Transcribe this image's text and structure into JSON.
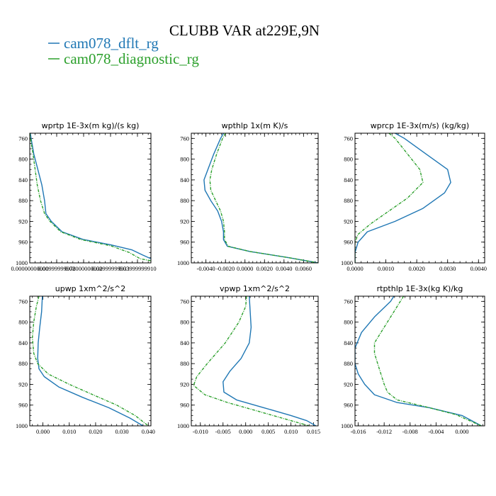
{
  "figure": {
    "title": "CLUBB VAR at229E,9N",
    "legend": [
      {
        "label": "cam078_dflt_rg",
        "color": "#1f77b4"
      },
      {
        "label": "cam078_diagnostic_rg",
        "color": "#2ca02c"
      }
    ]
  },
  "chart_data": [
    {
      "type": "line",
      "title": "wprtp  1E-3x(m kg)/(s kg)",
      "ylim": [
        1000,
        750
      ],
      "yticks": [
        760,
        800,
        840,
        880,
        920,
        960,
        1000
      ],
      "xlim": [
        0.0,
        0.045
      ],
      "xticks": [
        0.0,
        0.01,
        0.02,
        0.03,
        0.04
      ],
      "xtick_labels": [
        "0.00000000000",
        "0.00999999978",
        "0.02000000030",
        "0.02999999933",
        "0.03999999910"
      ],
      "series": [
        {
          "name": "cam078_dflt_rg",
          "color": "#1f77b4",
          "style": "solid",
          "points": [
            [
              0.0002,
              750
            ],
            [
              0.0005,
              760
            ],
            [
              0.0015,
              790
            ],
            [
              0.003,
              820
            ],
            [
              0.0045,
              850
            ],
            [
              0.0055,
              880
            ],
            [
              0.006,
              905
            ],
            [
              0.008,
              920
            ],
            [
              0.012,
              940
            ],
            [
              0.02,
              955
            ],
            [
              0.03,
              965
            ],
            [
              0.038,
              975
            ],
            [
              0.042,
              985
            ],
            [
              0.045,
              992
            ]
          ]
        },
        {
          "name": "cam078_diagnostic_rg",
          "color": "#2ca02c",
          "style": "dashed",
          "points": [
            [
              0.0,
              750
            ],
            [
              0.0003,
              760
            ],
            [
              0.0012,
              790
            ],
            [
              0.002,
              820
            ],
            [
              0.0028,
              850
            ],
            [
              0.004,
              880
            ],
            [
              0.0055,
              905
            ],
            [
              0.0075,
              920
            ],
            [
              0.0115,
              940
            ],
            [
              0.019,
              955
            ],
            [
              0.03,
              967
            ],
            [
              0.037,
              980
            ],
            [
              0.041,
              992
            ],
            [
              0.045,
              996
            ]
          ]
        }
      ]
    },
    {
      "type": "line",
      "title": "wpthlp  1x(m K)/s",
      "ylim": [
        1000,
        750
      ],
      "yticks": [
        760,
        800,
        840,
        880,
        920,
        960,
        1000
      ],
      "xlim": [
        -0.0055,
        0.0075
      ],
      "xticks": [
        -0.004,
        -0.002,
        0.0,
        0.002,
        0.004,
        0.006
      ],
      "xtick_labels": [
        "-0.0040",
        "-0.0020",
        "0.0000",
        "0.0020",
        "0.0040",
        "0.0060"
      ],
      "series": [
        {
          "name": "cam078_dflt_rg",
          "color": "#1f77b4",
          "style": "solid",
          "points": [
            [
              -0.0022,
              750
            ],
            [
              -0.0025,
              760
            ],
            [
              -0.0032,
              790
            ],
            [
              -0.0038,
              820
            ],
            [
              -0.0042,
              840
            ],
            [
              -0.0041,
              860
            ],
            [
              -0.0035,
              880
            ],
            [
              -0.0028,
              900
            ],
            [
              -0.0024,
              920
            ],
            [
              -0.0022,
              940
            ],
            [
              -0.0022,
              955
            ],
            [
              -0.0018,
              968
            ],
            [
              0.0005,
              978
            ],
            [
              0.0045,
              990
            ],
            [
              0.0075,
              1000
            ]
          ]
        },
        {
          "name": "cam078_diagnostic_rg",
          "color": "#2ca02c",
          "style": "dashed",
          "points": [
            [
              -0.002,
              750
            ],
            [
              -0.0023,
              760
            ],
            [
              -0.0029,
              790
            ],
            [
              -0.0034,
              820
            ],
            [
              -0.0036,
              840
            ],
            [
              -0.0035,
              860
            ],
            [
              -0.003,
              880
            ],
            [
              -0.0025,
              900
            ],
            [
              -0.0022,
              920
            ],
            [
              -0.0021,
              940
            ],
            [
              -0.0021,
              955
            ],
            [
              -0.0017,
              968
            ],
            [
              0.0005,
              978
            ],
            [
              0.0045,
              990
            ],
            [
              0.0075,
              1000
            ]
          ]
        }
      ]
    },
    {
      "type": "line",
      "title": "wprcp  1E-3x(m/s) (kg/kg)",
      "ylim": [
        1000,
        750
      ],
      "yticks": [
        760,
        800,
        840,
        880,
        920,
        960,
        1000
      ],
      "xlim": [
        0.0,
        0.0042
      ],
      "xticks": [
        0.0,
        0.001,
        0.002,
        0.003,
        0.004
      ],
      "xtick_labels": [
        "0.0000",
        "0.0010",
        "0.0020",
        "0.0030",
        "0.0040"
      ],
      "series": [
        {
          "name": "cam078_dflt_rg",
          "color": "#1f77b4",
          "style": "solid",
          "points": [
            [
              0.0013,
              750
            ],
            [
              0.0016,
              760
            ],
            [
              0.0023,
              790
            ],
            [
              0.003,
              820
            ],
            [
              0.0031,
              845
            ],
            [
              0.0029,
              865
            ],
            [
              0.0022,
              895
            ],
            [
              0.0013,
              920
            ],
            [
              0.0004,
              940
            ],
            [
              0.0001,
              960
            ],
            [
              0.0,
              980
            ],
            [
              0.0,
              1000
            ]
          ]
        },
        {
          "name": "cam078_diagnostic_rg",
          "color": "#2ca02c",
          "style": "dashed",
          "points": [
            [
              0.0011,
              750
            ],
            [
              0.0013,
              760
            ],
            [
              0.0017,
              790
            ],
            [
              0.0021,
              820
            ],
            [
              0.0022,
              845
            ],
            [
              0.0017,
              875
            ],
            [
              0.0011,
              900
            ],
            [
              0.0005,
              925
            ],
            [
              0.0001,
              945
            ],
            [
              0.0,
              960
            ],
            [
              0.0,
              980
            ],
            [
              0.0,
              1000
            ]
          ]
        }
      ]
    },
    {
      "type": "line",
      "title": "upwp  1xm^2/s^2",
      "ylim": [
        1000,
        750
      ],
      "yticks": [
        760,
        800,
        840,
        880,
        920,
        960,
        1000
      ],
      "xlim": [
        -0.005,
        0.041
      ],
      "xticks": [
        0.0,
        0.01,
        0.02,
        0.03,
        0.04
      ],
      "xtick_labels": [
        "0.000",
        "0.010",
        "0.020",
        "0.030",
        "0.040"
      ],
      "series": [
        {
          "name": "cam078_dflt_rg",
          "color": "#1f77b4",
          "style": "solid",
          "points": [
            [
              -0.0002,
              750
            ],
            [
              -0.0005,
              780
            ],
            [
              -0.0012,
              810
            ],
            [
              -0.0018,
              840
            ],
            [
              -0.002,
              870
            ],
            [
              -0.0015,
              890
            ],
            [
              0.0005,
              905
            ],
            [
              0.006,
              925
            ],
            [
              0.015,
              945
            ],
            [
              0.025,
              965
            ],
            [
              0.033,
              985
            ],
            [
              0.038,
              1000
            ]
          ]
        },
        {
          "name": "cam078_diagnostic_rg",
          "color": "#2ca02c",
          "style": "dashed",
          "points": [
            [
              -0.0015,
              750
            ],
            [
              -0.0025,
              770
            ],
            [
              -0.0035,
              800
            ],
            [
              -0.004,
              830
            ],
            [
              -0.0035,
              860
            ],
            [
              -0.002,
              880
            ],
            [
              0.002,
              900
            ],
            [
              0.01,
              920
            ],
            [
              0.019,
              940
            ],
            [
              0.028,
              960
            ],
            [
              0.035,
              980
            ],
            [
              0.04,
              1000
            ]
          ]
        }
      ]
    },
    {
      "type": "line",
      "title": "vpwp  1xm^2/s^2",
      "ylim": [
        1000,
        750
      ],
      "yticks": [
        760,
        800,
        840,
        880,
        920,
        960,
        1000
      ],
      "xlim": [
        -0.012,
        0.016
      ],
      "xticks": [
        -0.01,
        -0.005,
        0.0,
        0.005,
        0.01,
        0.015
      ],
      "xtick_labels": [
        "-0.010",
        "-0.005",
        "0.000",
        "0.005",
        "0.010",
        "0.015"
      ],
      "series": [
        {
          "name": "cam078_dflt_rg",
          "color": "#1f77b4",
          "style": "solid",
          "points": [
            [
              0.0008,
              750
            ],
            [
              0.001,
              780
            ],
            [
              0.0012,
              810
            ],
            [
              0.0008,
              840
            ],
            [
              -0.001,
              870
            ],
            [
              -0.0035,
              895
            ],
            [
              -0.005,
              915
            ],
            [
              -0.0048,
              935
            ],
            [
              -0.002,
              950
            ],
            [
              0.004,
              965
            ],
            [
              0.01,
              980
            ],
            [
              0.0135,
              990
            ],
            [
              0.0155,
              1000
            ]
          ]
        },
        {
          "name": "cam078_diagnostic_rg",
          "color": "#2ca02c",
          "style": "dashed",
          "points": [
            [
              0.0002,
              750
            ],
            [
              0.0,
              770
            ],
            [
              -0.0015,
              800
            ],
            [
              -0.0045,
              840
            ],
            [
              -0.0085,
              880
            ],
            [
              -0.0108,
              905
            ],
            [
              -0.0115,
              922
            ],
            [
              -0.009,
              940
            ],
            [
              -0.004,
              955
            ],
            [
              0.002,
              970
            ],
            [
              0.008,
              985
            ],
            [
              0.012,
              995
            ],
            [
              0.014,
              1000
            ]
          ]
        }
      ]
    },
    {
      "type": "line",
      "title": "rtpthlp  1E-3x(kg K)/kg",
      "ylim": [
        1000,
        750
      ],
      "yticks": [
        760,
        800,
        840,
        880,
        920,
        960,
        1000
      ],
      "xlim": [
        -0.0165,
        0.0035
      ],
      "xticks": [
        -0.016,
        -0.012,
        -0.008,
        -0.004,
        0.0
      ],
      "xtick_labels": [
        "-0.016",
        "-0.012",
        "-0.008",
        "-0.004",
        "0.000"
      ],
      "series": [
        {
          "name": "cam078_dflt_rg",
          "color": "#1f77b4",
          "style": "solid",
          "points": [
            [
              -0.0105,
              750
            ],
            [
              -0.011,
              760
            ],
            [
              -0.0135,
              790
            ],
            [
              -0.0155,
              820
            ],
            [
              -0.0165,
              850
            ],
            [
              -0.0165,
              880
            ],
            [
              -0.016,
              900
            ],
            [
              -0.015,
              920
            ],
            [
              -0.0135,
              940
            ],
            [
              -0.01,
              955
            ],
            [
              -0.005,
              965
            ],
            [
              0.0,
              980
            ],
            [
              0.003,
              1000
            ]
          ]
        },
        {
          "name": "cam078_diagnostic_rg",
          "color": "#2ca02c",
          "style": "dashed",
          "points": [
            [
              -0.009,
              750
            ],
            [
              -0.0095,
              760
            ],
            [
              -0.011,
              790
            ],
            [
              -0.0125,
              820
            ],
            [
              -0.0135,
              840
            ],
            [
              -0.0135,
              860
            ],
            [
              -0.013,
              880
            ],
            [
              -0.0125,
              900
            ],
            [
              -0.012,
              920
            ],
            [
              -0.0115,
              935
            ],
            [
              -0.01,
              950
            ],
            [
              -0.006,
              962
            ],
            [
              -0.001,
              978
            ],
            [
              0.003,
              1000
            ]
          ]
        }
      ]
    }
  ]
}
